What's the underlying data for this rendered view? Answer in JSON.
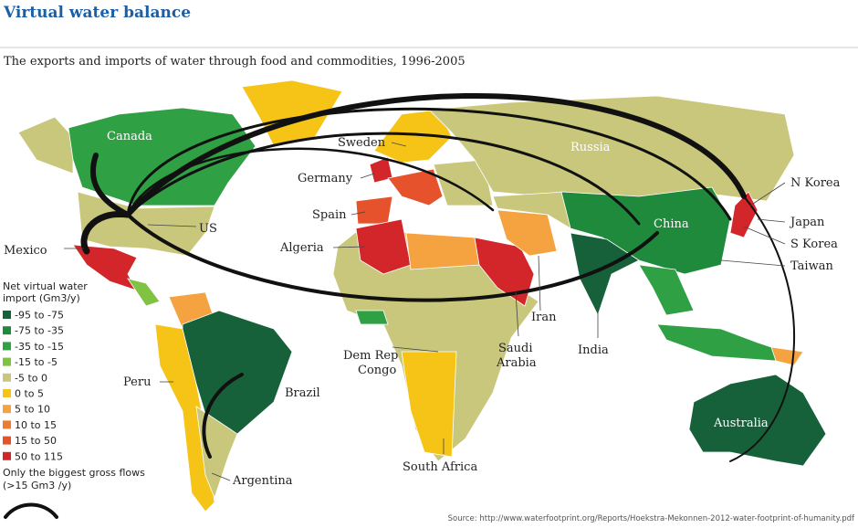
{
  "header": {
    "title": "Virtual water balance",
    "subtitle": "The exports and imports of water through food and commodities, 1996-2005"
  },
  "map_labels": {
    "canada": "Canada",
    "sweden": "Sweden",
    "russia": "Russia",
    "germany": "Germany",
    "n_korea": "N Korea",
    "japan": "Japan",
    "us": "US",
    "spain": "Spain",
    "china": "China",
    "mexico": "Mexico",
    "algeria": "Algeria",
    "s_korea": "S Korea",
    "taiwan": "Taiwan",
    "iran": "Iran",
    "saudi_arabia": [
      "Saudi",
      "Arabia"
    ],
    "india": "India",
    "dem_rep_congo": [
      "Dem Rep",
      "Congo"
    ],
    "peru": "Peru",
    "brazil": "Brazil",
    "australia": "Australia",
    "south_africa": "South Africa",
    "argentina": "Argentina"
  },
  "legend": {
    "title": [
      "Net virtual water",
      "import (Gm3/y)"
    ],
    "items": [
      {
        "label": "-95 to -75",
        "color": "#17613a"
      },
      {
        "label": "-75 to -35",
        "color": "#1f8a3b"
      },
      {
        "label": "-35 to -15",
        "color": "#2fa043"
      },
      {
        "label": "-15 to -5",
        "color": "#80c241"
      },
      {
        "label": "-5 to 0",
        "color": "#c9c77b"
      },
      {
        "label": "0 to 5",
        "color": "#f6c416"
      },
      {
        "label": "5 to 10",
        "color": "#f5a240"
      },
      {
        "label": "10 to 15",
        "color": "#ee7b32"
      },
      {
        "label": "15 to 50",
        "color": "#e6522b"
      },
      {
        "label": "50 to 115",
        "color": "#d3262a"
      }
    ],
    "flows_note": [
      "Only the biggest gross flows",
      "(>15 Gm3 /y)"
    ]
  },
  "source": "Source: http://www.waterfootprint.org/Reports/Hoekstra-Mekonnen-2012-water-footprint-of-humanity.pdf"
}
